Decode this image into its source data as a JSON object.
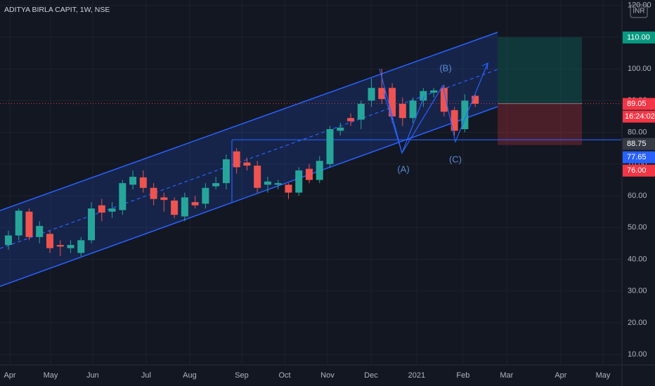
{
  "chart_data": {
    "type": "candlestick",
    "title": "ADITYA BIRLA CAPIT, 1W, NSE",
    "currency": "INR",
    "x": [
      0,
      1,
      2,
      3,
      4,
      5,
      6,
      7,
      8,
      9,
      10,
      11,
      12,
      13,
      14,
      15,
      16,
      17,
      18,
      19,
      20,
      21,
      22,
      23,
      24,
      25,
      26,
      27,
      28,
      29,
      30,
      31,
      32,
      33,
      34,
      35,
      36,
      37,
      38,
      39,
      40,
      41,
      42,
      43,
      44,
      45
    ],
    "open": [
      44.5,
      47.5,
      55,
      47,
      48,
      44.5,
      43.5,
      42,
      46,
      57,
      55,
      55.5,
      63.5,
      65.8,
      62.5,
      59.5,
      58.5,
      53.5,
      58,
      57.5,
      63,
      64,
      74,
      70.5,
      69.5,
      63.5,
      63.5,
      63.5,
      61,
      68.5,
      65,
      70,
      80.5,
      84.5,
      84,
      90,
      94,
      94,
      89,
      84.5,
      90,
      92.5,
      94,
      87,
      81,
      91.5
    ],
    "high": [
      49,
      56,
      56,
      52,
      49,
      46,
      46,
      47,
      58,
      59,
      58,
      65,
      68,
      68,
      64,
      61,
      59.5,
      61,
      60,
      64,
      66,
      73,
      75,
      72,
      71,
      66,
      65,
      64,
      69,
      70,
      72.5,
      82,
      83,
      86,
      90,
      97,
      100,
      95.5,
      91,
      91,
      94,
      94,
      95,
      88,
      92,
      92
    ],
    "low": [
      43,
      46,
      46,
      45,
      42,
      41,
      42,
      41,
      45,
      52,
      53,
      54,
      62,
      61,
      57,
      55,
      53,
      52,
      56,
      56,
      62,
      62,
      67,
      68,
      61,
      61,
      62,
      59,
      60,
      64,
      64,
      69,
      79,
      82,
      81,
      88,
      89,
      83,
      82,
      83,
      88,
      91,
      85,
      79,
      80,
      88
    ],
    "close": [
      47.5,
      55.3,
      47,
      50.5,
      43.5,
      44,
      44.5,
      46,
      56,
      54.7,
      56,
      64,
      66,
      62.5,
      59,
      58.7,
      54,
      59.5,
      57,
      62.5,
      64,
      71.5,
      69,
      69.5,
      62.5,
      64.5,
      64,
      61,
      68,
      65,
      71,
      81,
      81.5,
      83.5,
      89,
      94,
      90.5,
      85,
      84.5,
      90,
      93,
      93.2,
      86.5,
      80.5,
      90,
      89
    ],
    "up_color": "#26a69a",
    "down_color": "#ef5350",
    "xlim": [
      -0.81,
      59.15
    ],
    "xticks": [
      {
        "value": 0.14,
        "label": "Apr"
      },
      {
        "value": 4.07,
        "label": "May"
      },
      {
        "value": 8.13,
        "label": "Jun"
      },
      {
        "value": 13.28,
        "label": "Jul"
      },
      {
        "value": 17.48,
        "label": "Aug"
      },
      {
        "value": 22.49,
        "label": "Sep"
      },
      {
        "value": 26.63,
        "label": "Oct"
      },
      {
        "value": 30.76,
        "label": "Nov"
      },
      {
        "value": 34.96,
        "label": "Dec"
      },
      {
        "value": 39.36,
        "label": "2021"
      },
      {
        "value": 43.83,
        "label": "Feb"
      },
      {
        "value": 48.03,
        "label": "Mar"
      },
      {
        "value": 53.25,
        "label": "Apr"
      },
      {
        "value": 57.32,
        "label": "May"
      }
    ],
    "ylim": [
      6.7,
      121.7
    ],
    "yticks": [
      {
        "value": 10,
        "label": "10.00"
      },
      {
        "value": 20,
        "label": "20.00"
      },
      {
        "value": 30,
        "label": "30.00"
      },
      {
        "value": 40,
        "label": "40.00"
      },
      {
        "value": 50,
        "label": "50.00"
      },
      {
        "value": 60,
        "label": "60.00"
      },
      {
        "value": 70,
        "label": "70.00"
      },
      {
        "value": 80,
        "label": "80.00"
      },
      {
        "value": 90,
        "label": "90.00"
      },
      {
        "value": 100,
        "label": "100.00"
      },
      {
        "value": 110,
        "label": "110.00"
      },
      {
        "value": 120,
        "label": "120.00"
      }
    ],
    "grid": true,
    "last_price": {
      "value": 89.05,
      "label": "89.05",
      "color": "#f23645"
    },
    "countdown": "16:24:02",
    "levels": [
      {
        "value": 110,
        "label": "110.00",
        "color": "#089981"
      },
      {
        "value": 88.75,
        "label": "88.75",
        "color": "#363a45"
      },
      {
        "value": 77.65,
        "label": "77.65",
        "color": "#2962ff"
      },
      {
        "value": 76,
        "label": "76.00",
        "color": "#f23645"
      }
    ],
    "annotations": [
      "(A)",
      "(B)",
      "(C)"
    ]
  }
}
